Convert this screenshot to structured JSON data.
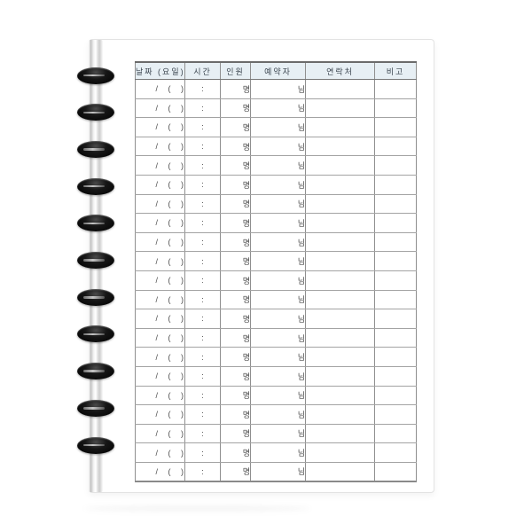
{
  "page": {
    "kind": "disc-bound notebook reservation sheet"
  },
  "table": {
    "headers": [
      "날짜 (요일)",
      "시간",
      "인원",
      "예약자",
      "연락처",
      "비고"
    ],
    "rows_count": 21,
    "row_template": {
      "date_display": "/   (   )",
      "time_separator": ":",
      "people_suffix": "명",
      "name_suffix": "님",
      "contact": "",
      "note": ""
    }
  },
  "binding": {
    "disc_count": 11
  },
  "colors": {
    "header_bg": "#e7eff4",
    "header_text": "#3c4650",
    "cell_text": "#4a4a4a",
    "grid_line": "#a3a3a3",
    "outer_line": "#6b6b6b",
    "disc_color": "#111111",
    "page_bg": "#ffffff"
  }
}
